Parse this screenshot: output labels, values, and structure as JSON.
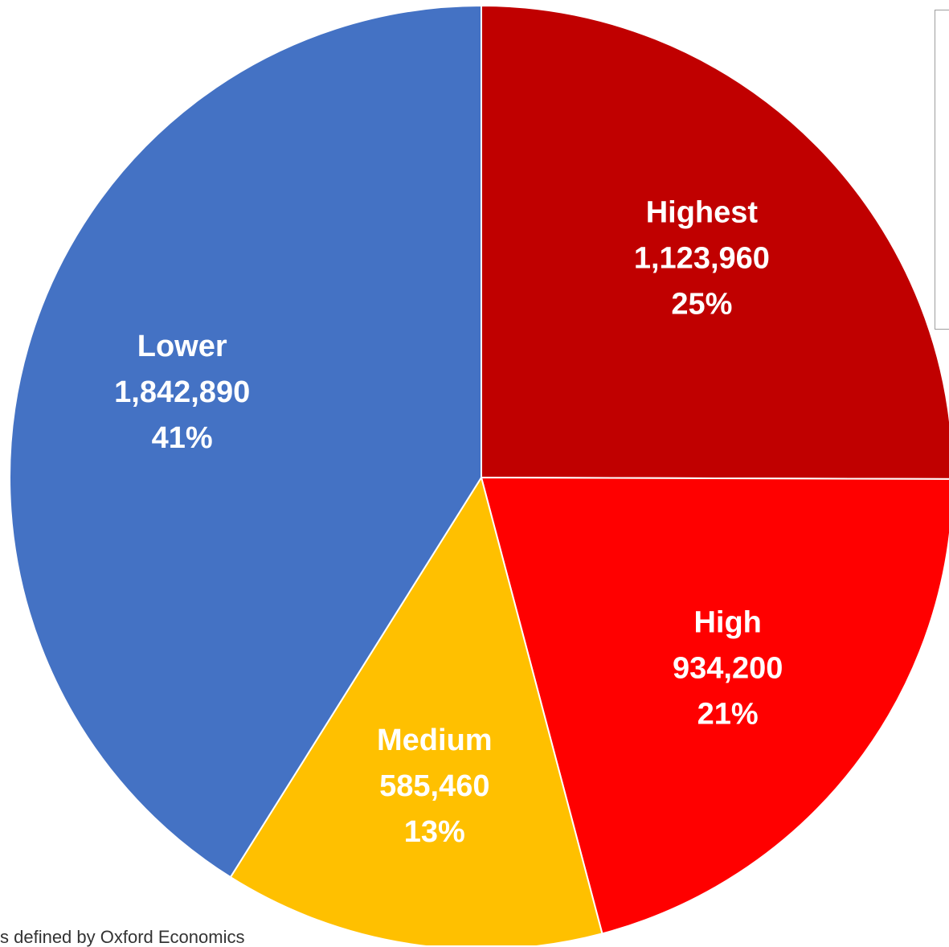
{
  "chart_data": {
    "type": "pie",
    "title": "",
    "start_angle_deg": 0,
    "direction": "clockwise",
    "slices": [
      {
        "label": "Highest",
        "value": 1123960,
        "value_label": "1,123,960",
        "percent_label": "25%",
        "color": "#C00000"
      },
      {
        "label": "High",
        "value": 934200,
        "value_label": "934,200",
        "percent_label": "21%",
        "color": "#FF0000"
      },
      {
        "label": "Medium",
        "value": 585460,
        "value_label": "585,460",
        "percent_label": "13%",
        "color": "#FFC000"
      },
      {
        "label": "Lower",
        "value": 1842890,
        "value_label": "1,842,890",
        "percent_label": "41%",
        "color": "#4472C4"
      }
    ]
  },
  "footnote": {
    "text": "s defined by Oxford Economics"
  }
}
